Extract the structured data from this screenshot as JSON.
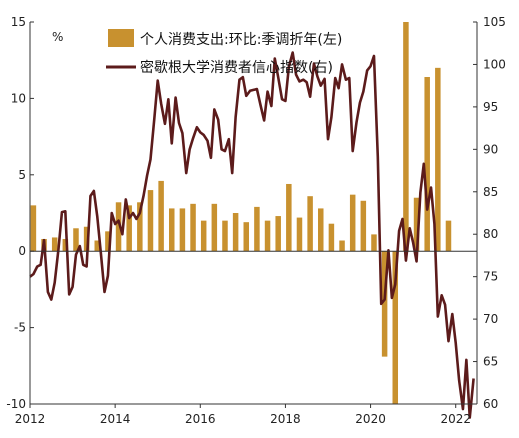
{
  "chart_data": {
    "type": "bar+line",
    "colors": {
      "bar": "#C8912F",
      "line": "#5C1B1B",
      "axis": "#333333"
    },
    "left_unit": "%",
    "legend": [
      {
        "label": "个人消费支出:环比:季调折年(左)",
        "kind": "bar"
      },
      {
        "label": "密歇根大学消费者信心指数(右)",
        "kind": "line"
      }
    ],
    "left_axis": {
      "min": -10,
      "max": 15,
      "ticks": [
        -10,
        -5,
        0,
        5,
        10,
        15
      ],
      "tick_labels": [
        "-10",
        "-5",
        "0",
        "5",
        "10",
        "15"
      ]
    },
    "right_axis": {
      "min": 60,
      "max": 105,
      "ticks": [
        60,
        65,
        70,
        75,
        80,
        85,
        90,
        95,
        100,
        105
      ],
      "tick_labels": [
        "60",
        "65",
        "70",
        "75",
        "80",
        "85",
        "90",
        "95",
        "100",
        "105"
      ]
    },
    "x_axis": {
      "min": 2012,
      "max": 2022.5,
      "ticks": [
        2012,
        2014,
        2016,
        2018,
        2020,
        2022
      ],
      "tick_labels": [
        "2012",
        "2014",
        "2016",
        "2018",
        "2020",
        "2022"
      ]
    },
    "bars": {
      "x": [
        2012.08,
        2012.33,
        2012.58,
        2012.83,
        2013.08,
        2013.33,
        2013.58,
        2013.83,
        2014.08,
        2014.33,
        2014.58,
        2014.83,
        2015.08,
        2015.33,
        2015.58,
        2015.83,
        2016.08,
        2016.33,
        2016.58,
        2016.83,
        2017.08,
        2017.33,
        2017.58,
        2017.83,
        2018.08,
        2018.33,
        2018.58,
        2018.83,
        2019.08,
        2019.33,
        2019.58,
        2019.83,
        2020.08,
        2020.33,
        2020.58,
        2020.83,
        2021.08,
        2021.33,
        2021.58,
        2021.83
      ],
      "values": [
        3.0,
        0.8,
        0.9,
        0.8,
        1.5,
        1.6,
        0.7,
        1.3,
        3.2,
        3.0,
        3.2,
        4.0,
        4.6,
        2.8,
        2.8,
        3.1,
        2.0,
        3.1,
        2.0,
        2.5,
        1.9,
        2.9,
        2.0,
        2.3,
        4.4,
        2.2,
        3.6,
        2.8,
        1.8,
        0.7,
        3.7,
        3.3,
        1.1,
        -6.9,
        -10.0,
        16.5,
        3.5,
        11.4,
        12.0,
        2.0
      ]
    },
    "line": {
      "x": [
        2012.0,
        2012.08,
        2012.17,
        2012.25,
        2012.33,
        2012.42,
        2012.5,
        2012.58,
        2012.67,
        2012.75,
        2012.83,
        2012.92,
        2013.0,
        2013.08,
        2013.17,
        2013.25,
        2013.33,
        2013.42,
        2013.5,
        2013.58,
        2013.67,
        2013.75,
        2013.83,
        2013.92,
        2014.0,
        2014.08,
        2014.17,
        2014.25,
        2014.33,
        2014.42,
        2014.5,
        2014.58,
        2014.67,
        2014.75,
        2014.83,
        2014.92,
        2015.0,
        2015.08,
        2015.17,
        2015.25,
        2015.33,
        2015.42,
        2015.5,
        2015.58,
        2015.67,
        2015.75,
        2015.83,
        2015.92,
        2016.0,
        2016.08,
        2016.17,
        2016.25,
        2016.33,
        2016.42,
        2016.5,
        2016.58,
        2016.67,
        2016.75,
        2016.83,
        2016.92,
        2017.0,
        2017.08,
        2017.17,
        2017.25,
        2017.33,
        2017.42,
        2017.5,
        2017.58,
        2017.67,
        2017.75,
        2017.83,
        2017.92,
        2018.0,
        2018.08,
        2018.17,
        2018.25,
        2018.33,
        2018.42,
        2018.5,
        2018.58,
        2018.67,
        2018.75,
        2018.83,
        2018.92,
        2019.0,
        2019.08,
        2019.17,
        2019.25,
        2019.33,
        2019.42,
        2019.5,
        2019.58,
        2019.67,
        2019.75,
        2019.83,
        2019.92,
        2020.0,
        2020.08,
        2020.17,
        2020.25,
        2020.33,
        2020.42,
        2020.5,
        2020.58,
        2020.67,
        2020.75,
        2020.83,
        2020.92,
        2021.0,
        2021.08,
        2021.17,
        2021.25,
        2021.33,
        2021.42,
        2021.5,
        2021.58,
        2021.67,
        2021.75,
        2021.83,
        2021.92,
        2022.0,
        2022.08,
        2022.17,
        2022.25,
        2022.33,
        2022.42
      ],
      "values": [
        75.0,
        75.3,
        76.2,
        76.4,
        79.3,
        73.2,
        72.3,
        74.3,
        78.3,
        82.6,
        82.7,
        72.9,
        73.8,
        77.6,
        78.6,
        76.4,
        76.2,
        84.5,
        85.1,
        82.1,
        77.5,
        73.2,
        75.1,
        82.5,
        81.2,
        81.6,
        80.0,
        84.1,
        81.9,
        82.5,
        81.8,
        82.5,
        84.6,
        86.9,
        88.8,
        93.6,
        98.1,
        95.4,
        93.0,
        95.9,
        90.7,
        96.1,
        93.1,
        91.9,
        87.2,
        90.0,
        91.3,
        92.6,
        92.0,
        91.7,
        91.0,
        89.0,
        94.7,
        93.5,
        90.0,
        89.8,
        91.2,
        87.2,
        93.8,
        98.2,
        98.5,
        96.3,
        96.9,
        97.0,
        97.1,
        95.1,
        93.4,
        96.8,
        95.1,
        100.7,
        98.5,
        95.9,
        95.7,
        99.7,
        101.4,
        98.8,
        98.0,
        98.2,
        97.9,
        96.2,
        100.1,
        98.6,
        97.5,
        98.3,
        91.2,
        93.8,
        98.4,
        97.2,
        100.0,
        98.2,
        98.4,
        89.8,
        93.2,
        95.5,
        96.8,
        99.3,
        99.8,
        101.0,
        89.1,
        71.8,
        72.3,
        78.1,
        72.5,
        74.1,
        80.4,
        81.8,
        76.9,
        80.7,
        79.0,
        76.8,
        84.9,
        88.3,
        82.9,
        85.5,
        81.2,
        70.3,
        72.8,
        71.7,
        67.4,
        70.6,
        67.2,
        62.8,
        59.4,
        65.2,
        58.4,
        63.0
      ]
    }
  }
}
